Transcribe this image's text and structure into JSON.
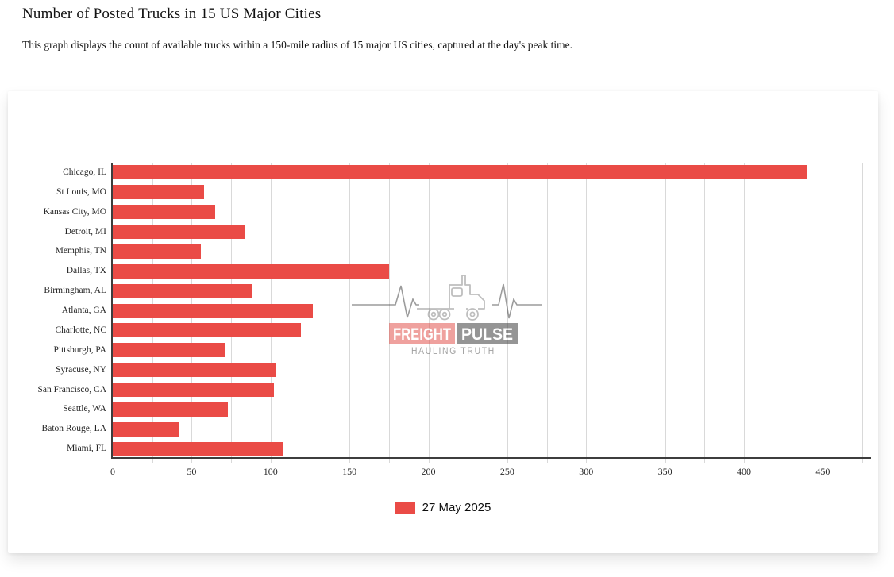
{
  "page": {
    "title": "Number of Posted Trucks in 15 US Major Cities",
    "subtitle": "This graph displays the count of available trucks within a 150-mile radius of 15 major US cities, captured at the day's peak time."
  },
  "chart_data": {
    "type": "bar",
    "orientation": "horizontal",
    "title": "Number of Posted Trucks in 15 US Major Cities",
    "categories": [
      "Chicago, IL",
      "St Louis, MO",
      "Kansas City, MO",
      "Detroit, MI",
      "Memphis, TN",
      "Dallas, TX",
      "Birmingham, AL",
      "Atlanta, GA",
      "Charlotte, NC",
      "Pittsburgh, PA",
      "Syracuse, NY",
      "San Francisco, CA",
      "Seattle, WA",
      "Baton Rouge, LA",
      "Miami, FL"
    ],
    "series": [
      {
        "name": "27 May 2025",
        "values": [
          440,
          58,
          65,
          84,
          56,
          175,
          88,
          127,
          119,
          71,
          103,
          102,
          73,
          42,
          108
        ]
      }
    ],
    "xlim": [
      0,
      480
    ],
    "x_ticks": [
      0,
      50,
      100,
      150,
      200,
      250,
      300,
      350,
      400,
      450
    ],
    "gridline_step": 25,
    "grid": true,
    "bar_color": "#ea4b46",
    "legend_position": "bottom"
  },
  "legend": {
    "label": "27 May 2025",
    "swatch_color": "#ea4b46"
  },
  "watermark": {
    "brand_first": "FREIGHT",
    "brand_second": "PULSE",
    "tagline": "HAULING TRUTH"
  }
}
